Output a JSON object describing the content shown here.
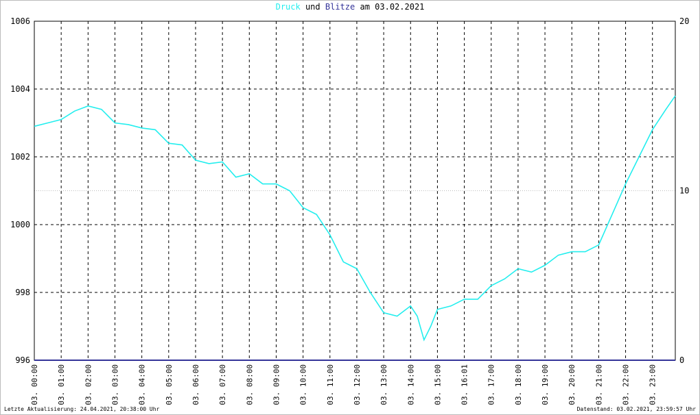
{
  "chart_data": {
    "type": "line",
    "title_connector": "und",
    "title_date": "am 03.02.2021",
    "footer_left": "Letzte Aktualisierung: 24.04.2021, 20:38:00 Uhr",
    "footer_right": "Datenstand: 03.02.2021, 23:59:57 Uhr",
    "xlim": [
      0,
      23.85
    ],
    "xticks": [
      {
        "value": 0,
        "label": "03. 00:00"
      },
      {
        "value": 1,
        "label": "03. 01:00"
      },
      {
        "value": 2,
        "label": "03. 02:00"
      },
      {
        "value": 3,
        "label": "03. 03:00"
      },
      {
        "value": 4,
        "label": "03. 04:00"
      },
      {
        "value": 5,
        "label": "03. 05:00"
      },
      {
        "value": 6,
        "label": "03. 06:00"
      },
      {
        "value": 7,
        "label": "03. 07:00"
      },
      {
        "value": 8,
        "label": "03. 08:00"
      },
      {
        "value": 9,
        "label": "03. 09:00"
      },
      {
        "value": 10,
        "label": "03. 10:00"
      },
      {
        "value": 11,
        "label": "03. 11:00"
      },
      {
        "value": 12,
        "label": "03. 12:00"
      },
      {
        "value": 13,
        "label": "03. 13:00"
      },
      {
        "value": 14,
        "label": "03. 14:00"
      },
      {
        "value": 15,
        "label": "03. 15:00"
      },
      {
        "value": 16,
        "label": "03. 16:01"
      },
      {
        "value": 17,
        "label": "03. 17:00"
      },
      {
        "value": 18,
        "label": "03. 18:00"
      },
      {
        "value": 19,
        "label": "03. 19:00"
      },
      {
        "value": 20,
        "label": "03. 20:00"
      },
      {
        "value": 21,
        "label": "03. 21:00"
      },
      {
        "value": 22,
        "label": "03. 22:00"
      },
      {
        "value": 23,
        "label": "03. 23:00"
      }
    ],
    "ylim": [
      996,
      1006
    ],
    "yticks": [
      996,
      998,
      1000,
      1002,
      1004,
      1006
    ],
    "y2lim": [
      0,
      20
    ],
    "y2ticks": [
      0,
      10,
      20
    ],
    "grid": true,
    "series": [
      {
        "name": "Druck",
        "color": "#22eeee",
        "x": [
          0,
          0.5,
          1,
          1.5,
          2,
          2.5,
          3,
          3.5,
          4,
          4.5,
          5,
          5.5,
          6,
          6.5,
          7,
          7.5,
          8,
          8.5,
          9,
          9.5,
          10,
          10.5,
          11,
          11.5,
          12,
          12.5,
          13,
          13.5,
          14,
          14.25,
          14.5,
          14.75,
          15,
          15.5,
          16,
          16.5,
          17,
          17.5,
          18,
          18.5,
          19,
          19.5,
          20,
          20.5,
          21,
          21.5,
          22,
          22.5,
          23,
          23.5,
          23.85
        ],
        "values": [
          1002.9,
          1003.0,
          1003.1,
          1003.35,
          1003.5,
          1003.4,
          1003.0,
          1002.95,
          1002.85,
          1002.8,
          1002.4,
          1002.35,
          1001.9,
          1001.8,
          1001.85,
          1001.4,
          1001.5,
          1001.2,
          1001.2,
          1001.0,
          1000.5,
          1000.3,
          999.7,
          998.9,
          998.7,
          998.0,
          997.4,
          997.3,
          997.6,
          997.3,
          996.6,
          997.0,
          997.5,
          997.6,
          997.8,
          997.8,
          998.2,
          998.4,
          998.7,
          998.6,
          998.8,
          999.1,
          999.2,
          999.2,
          999.4,
          1000.3,
          1001.2,
          1002.0,
          1002.8,
          1003.4,
          1003.8
        ]
      },
      {
        "name": "Blitze",
        "color": "#333399",
        "axis": "y2",
        "x": [
          0,
          23.85
        ],
        "values": [
          0,
          0
        ]
      }
    ]
  }
}
